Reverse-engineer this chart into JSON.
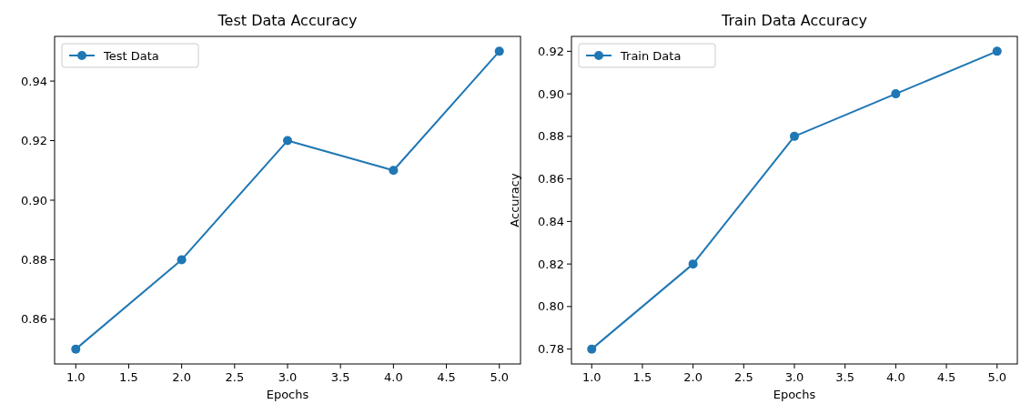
{
  "chart_data": [
    {
      "type": "line",
      "title": "Test Data Accuracy",
      "xlabel": "Epochs",
      "x": [
        1,
        2,
        3,
        4,
        5
      ],
      "series": [
        {
          "name": "Test Data",
          "color": "#1f77b4",
          "values": [
            0.85,
            0.88,
            0.92,
            0.91,
            0.95
          ]
        }
      ],
      "xlim": [
        0.8,
        5.2
      ],
      "xticks": [
        {
          "value": 1,
          "label": "1.0"
        },
        {
          "value": 1.5,
          "label": "1.5"
        },
        {
          "value": 2,
          "label": "2.0"
        },
        {
          "value": 2.5,
          "label": "2.5"
        },
        {
          "value": 3,
          "label": "3.0"
        },
        {
          "value": 3.5,
          "label": "3.5"
        },
        {
          "value": 4,
          "label": "4.0"
        },
        {
          "value": 4.5,
          "label": "4.5"
        },
        {
          "value": 5,
          "label": "5.0"
        }
      ],
      "ylim": [
        0.845,
        0.955
      ],
      "yticks": [
        {
          "value": 0.86,
          "label": "0.86"
        },
        {
          "value": 0.88,
          "label": "0.88"
        },
        {
          "value": 0.9,
          "label": "0.90"
        },
        {
          "value": 0.92,
          "label": "0.92"
        },
        {
          "value": 0.94,
          "label": "0.94"
        }
      ],
      "legend": "top left",
      "marker": "circle",
      "line_style": "solid"
    },
    {
      "type": "line",
      "title": "Train Data Accuracy",
      "xlabel": "Epochs",
      "ylabel": "Accuracy",
      "x": [
        1,
        2,
        3,
        4,
        5
      ],
      "series": [
        {
          "name": "Train Data",
          "color": "#1f77b4",
          "values": [
            0.78,
            0.82,
            0.88,
            0.9,
            0.92
          ]
        }
      ],
      "xlim": [
        0.8,
        5.2
      ],
      "xticks": [
        {
          "value": 1,
          "label": "1.0"
        },
        {
          "value": 1.5,
          "label": "1.5"
        },
        {
          "value": 2,
          "label": "2.0"
        },
        {
          "value": 2.5,
          "label": "2.5"
        },
        {
          "value": 3,
          "label": "3.0"
        },
        {
          "value": 3.5,
          "label": "3.5"
        },
        {
          "value": 4,
          "label": "4.0"
        },
        {
          "value": 4.5,
          "label": "4.5"
        },
        {
          "value": 5,
          "label": "5.0"
        }
      ],
      "ylim": [
        0.773,
        0.927
      ],
      "yticks": [
        {
          "value": 0.78,
          "label": "0.78"
        },
        {
          "value": 0.8,
          "label": "0.80"
        },
        {
          "value": 0.82,
          "label": "0.82"
        },
        {
          "value": 0.84,
          "label": "0.84"
        },
        {
          "value": 0.86,
          "label": "0.86"
        },
        {
          "value": 0.88,
          "label": "0.88"
        },
        {
          "value": 0.9,
          "label": "0.90"
        },
        {
          "value": 0.92,
          "label": "0.92"
        }
      ],
      "legend": "top left",
      "marker": "circle",
      "line_style": "solid"
    }
  ]
}
